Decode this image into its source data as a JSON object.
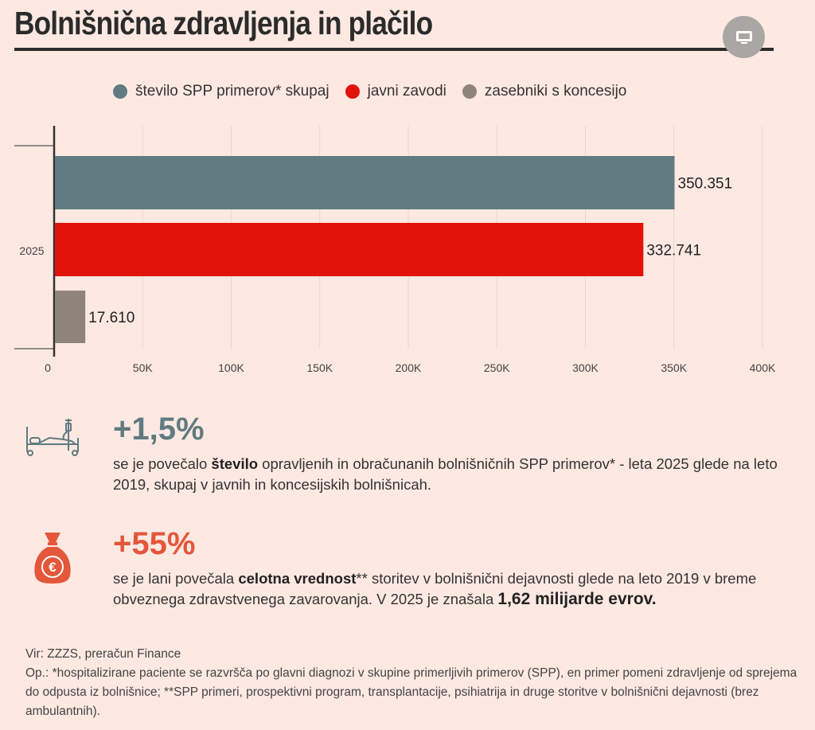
{
  "title": "Bolnišnična zdravljenja in plačilo",
  "legend": [
    {
      "label": "število SPP primerov* skupaj",
      "color": "#607b81"
    },
    {
      "label": "javni zavodi",
      "color": "#e0140b"
    },
    {
      "label": "zasebniki s koncesijo",
      "color": "#8f847a"
    }
  ],
  "chart_data": {
    "type": "bar",
    "orientation": "horizontal",
    "categories": [
      "2025"
    ],
    "series": [
      {
        "name": "število SPP primerov* skupaj",
        "values": [
          350351
        ],
        "label": "350.351",
        "color": "#607b81"
      },
      {
        "name": "javni zavodi",
        "values": [
          332741
        ],
        "label": "332.741",
        "color": "#e0140b"
      },
      {
        "name": "zasebniki s koncesijo",
        "values": [
          17610
        ],
        "label": "17.610",
        "color": "#8f847a"
      }
    ],
    "xlim": [
      0,
      400000
    ],
    "xticks": [
      0,
      50000,
      100000,
      150000,
      200000,
      250000,
      300000,
      350000,
      400000
    ],
    "xtick_labels": [
      "0",
      "50K",
      "100K",
      "150K",
      "200K",
      "250K",
      "300K",
      "350K",
      "400K"
    ],
    "grid": true
  },
  "stats": [
    {
      "value": "+1,5%",
      "color": "#607b81",
      "icon": "hospital-bed-icon",
      "pre": "se je povečalo ",
      "bold": "število",
      "post": " opravljenih in obračunanih bolnišničnih SPP primerov* - leta 2025 glede na leto 2019, skupaj v javnih in koncesijskih bolnišnicah."
    },
    {
      "value": "+55%",
      "color": "#e4573b",
      "icon": "money-bag-euro-icon",
      "pre": "se je lani povečala ",
      "bold": "celotna vrednost",
      "post": "** storitev v bolnišnični dejavnosti glede na leto 2019 v breme obveznega zdravstvenega zavarovanja. V 2025 je znašala ",
      "big": "1,62 milijarde evrov."
    }
  ],
  "footer": {
    "source": "Vir: ZZZS, preračun Finance",
    "note": "Op.: *hospitalizirane paciente se razvršča po glavni diagnozi v skupine primerljivih primerov (SPP), en primer pomeni zdravljenje od sprejema do odpusta iz bolnišnice; **SPP primeri, prospektivni program, transplantacije, psihiatrija in druge storitve v bolnišnični dejavnosti (brez ambulantnih)."
  }
}
